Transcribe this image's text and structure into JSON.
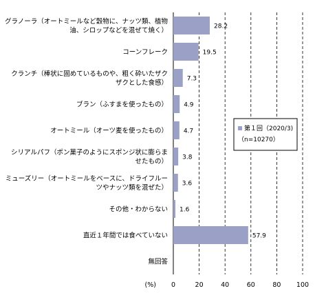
{
  "chart_data": {
    "type": "bar",
    "orientation": "horizontal",
    "categories": [
      [
        "グラノーラ（オートミールなど穀物に、ナッツ類、植物",
        "油、シロップなどを混ぜて焼く）"
      ],
      [
        "コーンフレーク"
      ],
      [
        "クランチ（棒状に固めているものや、粗く砕いたザク",
        "ザクとした食感）"
      ],
      [
        "ブラン（ふすまを使ったもの）"
      ],
      [
        "オートミール（オーツ麦を使ったもの）"
      ],
      [
        "シリアルパフ（ポン菓子のようにスポンジ状に膨らま",
        "せたもの）"
      ],
      [
        "ミューズリー（オートミールをベースに、ドライフルー",
        "ツやナッツ類を混ぜた）"
      ],
      [
        "その他・わからない"
      ],
      [
        "直近１年間では食べていない"
      ],
      [
        "無回答"
      ]
    ],
    "series": [
      {
        "name": "第１回（2020/3)\n（n=10270）",
        "values": [
          28.2,
          19.5,
          7.3,
          4.9,
          4.7,
          3.8,
          3.6,
          1.6,
          57.9,
          null
        ],
        "value_labels": [
          "28.2",
          "19.5",
          "7.3",
          "4.9",
          "4.7",
          "3.8",
          "3.6",
          "1.6",
          "57.9",
          ""
        ]
      }
    ],
    "xlim": [
      0,
      100
    ],
    "xticks": [
      "0",
      "20",
      "40",
      "60",
      "80",
      "100"
    ],
    "xlabel": "(%)",
    "grid": "vertical dashed",
    "legend_placement": "right",
    "legend_lines": [
      "第１回（2020/3)",
      "（n=10270）"
    ],
    "bar_color": "#9aa0c6"
  }
}
